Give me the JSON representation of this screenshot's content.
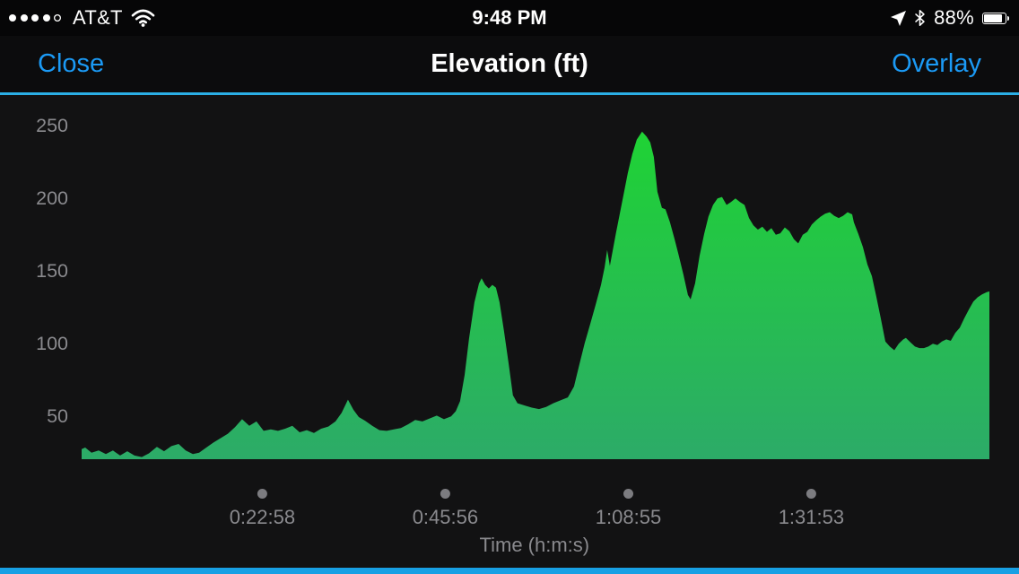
{
  "status_bar": {
    "carrier": "AT&T",
    "time": "9:48 PM",
    "battery_percent": "88%",
    "battery_level": 88,
    "signal_dots_filled": 4,
    "signal_dots_total": 5
  },
  "nav_bar": {
    "close_label": "Close",
    "title": "Elevation (ft)",
    "overlay_label": "Overlay"
  },
  "colors": {
    "accent_blue": "#1b9af5",
    "separator_blue": "#2bafe6",
    "bottom_bar_blue": "#18a0e4",
    "axis_gray": "#8a8a8e",
    "tick_dot_gray": "#7c7c80",
    "area_top_green": "#1fd334",
    "area_bottom_green": "#2cab68",
    "chart_background": "#121213"
  },
  "chart_data": {
    "type": "area",
    "title": "Elevation (ft)",
    "xlabel": "Time (h:m:s)",
    "x_tick_labels": [
      "0:22:58",
      "0:45:56",
      "1:08:55",
      "1:31:53"
    ],
    "x_tick_seconds": [
      1378,
      2756,
      4135,
      5513
    ],
    "x_total_seconds": 6855,
    "y_ticks": [
      50,
      100,
      150,
      200,
      250
    ],
    "ylim": [
      20,
      260
    ],
    "grid": false,
    "legend": false,
    "points": [
      [
        17,
        27
      ],
      [
        44,
        28
      ],
      [
        91,
        24.5
      ],
      [
        145,
        26
      ],
      [
        199,
        23.5
      ],
      [
        253,
        26
      ],
      [
        307,
        22.5
      ],
      [
        361,
        25.5
      ],
      [
        415,
        22.5
      ],
      [
        470,
        21.5
      ],
      [
        524,
        24
      ],
      [
        584,
        28.5
      ],
      [
        638,
        25.5
      ],
      [
        693,
        29
      ],
      [
        747,
        30.5
      ],
      [
        801,
        26
      ],
      [
        855,
        23.5
      ],
      [
        902,
        24.5
      ],
      [
        956,
        28
      ],
      [
        1010,
        31.5
      ],
      [
        1064,
        34.5
      ],
      [
        1118,
        37.5
      ],
      [
        1172,
        42
      ],
      [
        1226,
        47.5
      ],
      [
        1280,
        43
      ],
      [
        1334,
        46
      ],
      [
        1388,
        39.5
      ],
      [
        1442,
        40.5
      ],
      [
        1496,
        39.5
      ],
      [
        1550,
        41
      ],
      [
        1604,
        43
      ],
      [
        1659,
        38.5
      ],
      [
        1713,
        40
      ],
      [
        1767,
        38
      ],
      [
        1821,
        41
      ],
      [
        1875,
        42.5
      ],
      [
        1929,
        46
      ],
      [
        1976,
        52
      ],
      [
        2023,
        61
      ],
      [
        2064,
        54
      ],
      [
        2105,
        49
      ],
      [
        2152,
        46.5
      ],
      [
        2206,
        43
      ],
      [
        2260,
        40
      ],
      [
        2314,
        39.5
      ],
      [
        2368,
        40.5
      ],
      [
        2422,
        41.5
      ],
      [
        2476,
        44
      ],
      [
        2530,
        47
      ],
      [
        2584,
        46
      ],
      [
        2638,
        48
      ],
      [
        2692,
        50
      ],
      [
        2746,
        47.5
      ],
      [
        2800,
        49.5
      ],
      [
        2835,
        53
      ],
      [
        2868,
        60
      ],
      [
        2902,
        78
      ],
      [
        2935,
        103
      ],
      [
        2976,
        128
      ],
      [
        3010,
        141
      ],
      [
        3030,
        144.5
      ],
      [
        3057,
        140
      ],
      [
        3084,
        137.5
      ],
      [
        3111,
        140
      ],
      [
        3138,
        138
      ],
      [
        3165,
        128
      ],
      [
        3199,
        108
      ],
      [
        3233,
        86
      ],
      [
        3266,
        64
      ],
      [
        3300,
        58.5
      ],
      [
        3354,
        57
      ],
      [
        3408,
        55.5
      ],
      [
        3462,
        54.5
      ],
      [
        3516,
        56
      ],
      [
        3570,
        58.5
      ],
      [
        3624,
        60.5
      ],
      [
        3679,
        62.5
      ],
      [
        3726,
        70
      ],
      [
        3766,
        85
      ],
      [
        3807,
        100
      ],
      [
        3848,
        113
      ],
      [
        3888,
        126
      ],
      [
        3929,
        140
      ],
      [
        3956,
        152
      ],
      [
        3976,
        164
      ],
      [
        3996,
        153
      ],
      [
        4043,
        176
      ],
      [
        4084,
        195
      ],
      [
        4131,
        217
      ],
      [
        4165,
        230
      ],
      [
        4199,
        240
      ],
      [
        4239,
        245.5
      ],
      [
        4273,
        242
      ],
      [
        4300,
        238
      ],
      [
        4327,
        228
      ],
      [
        4354,
        204
      ],
      [
        4388,
        193
      ],
      [
        4415,
        192
      ],
      [
        4449,
        183
      ],
      [
        4482,
        172
      ],
      [
        4516,
        160
      ],
      [
        4550,
        147
      ],
      [
        4584,
        133
      ],
      [
        4604,
        130
      ],
      [
        4638,
        141
      ],
      [
        4672,
        160
      ],
      [
        4706,
        175
      ],
      [
        4739,
        187
      ],
      [
        4773,
        195
      ],
      [
        4807,
        199.5
      ],
      [
        4841,
        200.5
      ],
      [
        4875,
        195
      ],
      [
        4908,
        197
      ],
      [
        4942,
        199.5
      ],
      [
        4976,
        197
      ],
      [
        5010,
        195
      ],
      [
        5044,
        186
      ],
      [
        5077,
        181
      ],
      [
        5111,
        178
      ],
      [
        5145,
        180
      ],
      [
        5179,
        176.5
      ],
      [
        5213,
        179
      ],
      [
        5246,
        174.5
      ],
      [
        5280,
        175.5
      ],
      [
        5314,
        179.5
      ],
      [
        5348,
        177
      ],
      [
        5382,
        171.5
      ],
      [
        5415,
        168.5
      ],
      [
        5449,
        174.5
      ],
      [
        5483,
        176.5
      ],
      [
        5517,
        181.5
      ],
      [
        5551,
        184.5
      ],
      [
        5584,
        187
      ],
      [
        5618,
        189
      ],
      [
        5652,
        190
      ],
      [
        5686,
        187.5
      ],
      [
        5720,
        186
      ],
      [
        5753,
        187.5
      ],
      [
        5787,
        190
      ],
      [
        5821,
        188.5
      ],
      [
        5834,
        183
      ],
      [
        5868,
        175
      ],
      [
        5902,
        166
      ],
      [
        5936,
        154
      ],
      [
        5970,
        146
      ],
      [
        6003,
        132
      ],
      [
        6037,
        117
      ],
      [
        6071,
        101
      ],
      [
        6105,
        97.5
      ],
      [
        6139,
        95
      ],
      [
        6172,
        99.5
      ],
      [
        6206,
        102.5
      ],
      [
        6226,
        103.5
      ],
      [
        6260,
        100.5
      ],
      [
        6294,
        97.5
      ],
      [
        6328,
        96.5
      ],
      [
        6362,
        96.5
      ],
      [
        6395,
        97.5
      ],
      [
        6429,
        99.5
      ],
      [
        6463,
        98.5
      ],
      [
        6497,
        101
      ],
      [
        6531,
        102.5
      ],
      [
        6564,
        101.5
      ],
      [
        6598,
        107
      ],
      [
        6632,
        110.5
      ],
      [
        6666,
        117
      ],
      [
        6700,
        123
      ],
      [
        6734,
        128.5
      ],
      [
        6767,
        131.5
      ],
      [
        6801,
        133.5
      ],
      [
        6835,
        135
      ],
      [
        6855,
        135.5
      ]
    ]
  }
}
